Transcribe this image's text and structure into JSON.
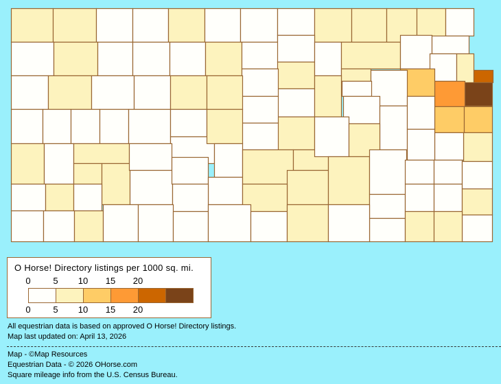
{
  "map": {
    "colors": [
      "#fffffb",
      "#fdf3be",
      "#fecc66",
      "#fe9a35",
      "#cc6600",
      "#7a4319"
    ],
    "border_color": "#996633",
    "background_color": "#9af0fc",
    "county_levels": [
      1,
      1,
      0,
      0,
      1,
      0,
      0,
      0,
      1,
      1,
      1,
      1,
      0,
      0,
      1,
      0,
      0,
      0,
      1,
      0,
      0,
      1,
      0,
      1,
      0,
      0,
      0,
      0,
      1,
      0,
      0,
      1,
      1,
      0,
      0,
      0,
      0,
      0,
      0,
      0,
      1,
      1,
      0,
      1,
      1,
      1,
      0,
      0,
      0,
      0,
      0,
      0,
      1,
      1,
      1,
      1,
      0,
      1,
      0,
      0,
      0,
      1,
      0,
      0,
      0,
      0,
      0,
      1,
      0,
      1,
      1,
      0,
      0,
      0,
      1,
      4,
      5,
      3,
      2,
      2,
      2,
      1,
      0,
      0,
      0,
      0,
      0,
      0,
      0,
      1,
      0,
      1,
      1,
      0,
      0,
      0,
      0,
      0,
      0,
      0,
      0,
      1,
      0,
      1,
      1,
      0
    ]
  },
  "legend": {
    "title": "O Horse! Directory listings per 1000 sq. mi.",
    "top_ticks": [
      "0",
      "5",
      "10",
      "15",
      "20"
    ],
    "bottom_ticks": [
      "0",
      "5",
      "10",
      "15",
      "20"
    ]
  },
  "notes": {
    "line1": "All equestrian data is based on approved O Horse! Directory listings.",
    "line2": "Map last updated on: April 13, 2026"
  },
  "credits": {
    "line1": "Map - ©Map Resources",
    "line2": "Equestrian Data - © 2026 OHorse.com",
    "line3": "Square mileage info from the U.S. Census Bureau."
  }
}
